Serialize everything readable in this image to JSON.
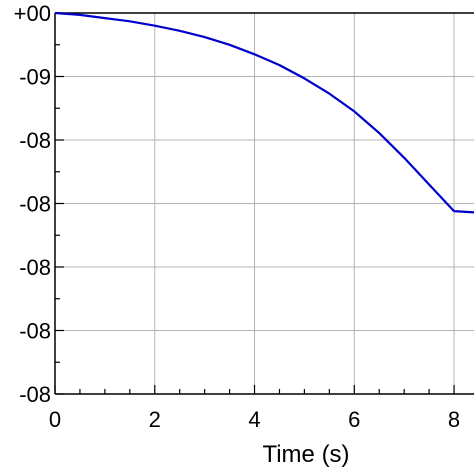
{
  "chart_data": {
    "type": "line",
    "xlabel": "Time (s)",
    "ylabel": "",
    "xlim": [
      0,
      8.4
    ],
    "ylim": [
      0,
      6
    ],
    "grid": true,
    "x_ticks": [
      {
        "value": 0,
        "label": "0"
      },
      {
        "value": 2,
        "label": "2"
      },
      {
        "value": 4,
        "label": "4"
      },
      {
        "value": 6,
        "label": "6"
      },
      {
        "value": 8,
        "label": "8"
      }
    ],
    "y_ticks": [
      {
        "value": 6,
        "label": "+00"
      },
      {
        "value": 5,
        "label": "-09"
      },
      {
        "value": 4,
        "label": "-08"
      },
      {
        "value": 3,
        "label": "-08"
      },
      {
        "value": 2,
        "label": "-08"
      },
      {
        "value": 1,
        "label": "-08"
      },
      {
        "value": 0,
        "label": "-08"
      }
    ],
    "series": [
      {
        "color": "#0000cc",
        "x": [
          0,
          0.5,
          1,
          1.5,
          2,
          2.5,
          3,
          3.5,
          4,
          4.5,
          5,
          5.5,
          6,
          6.5,
          7,
          7.5,
          8,
          8.4
        ],
        "y": [
          6.0,
          5.97,
          5.92,
          5.87,
          5.8,
          5.72,
          5.62,
          5.5,
          5.35,
          5.18,
          4.97,
          4.73,
          4.45,
          4.11,
          3.72,
          3.3,
          2.88,
          2.86
        ]
      }
    ]
  }
}
